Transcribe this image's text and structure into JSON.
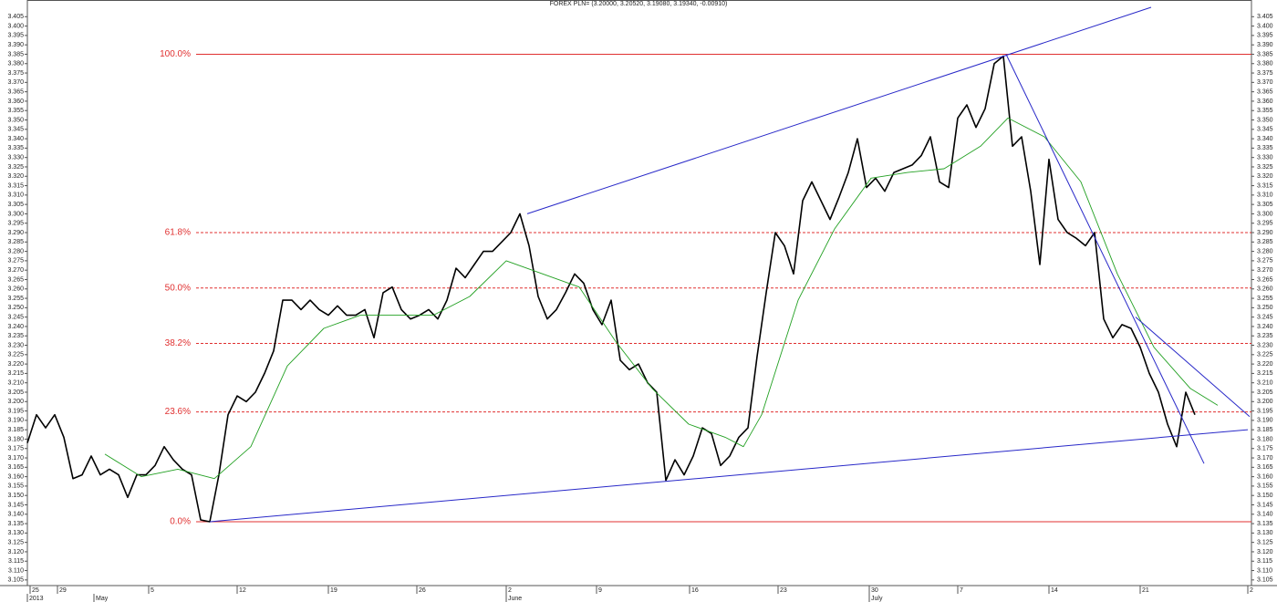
{
  "chart_data": {
    "type": "line",
    "title": "FOREX PLN= (3.20000, 3.20520, 3.19080, 3.19340, -0.00910)",
    "xlim": [
      0,
      134.2
    ],
    "ylim": [
      3.102,
      3.41
    ],
    "xticks": [
      {
        "value": 0.3,
        "label": "25"
      },
      {
        "value": 3.3,
        "label": "29"
      },
      {
        "value": 13.3,
        "label": "5"
      },
      {
        "value": 23,
        "label": "12"
      },
      {
        "value": 33,
        "label": "19"
      },
      {
        "value": 42.7,
        "label": "26"
      },
      {
        "value": 52.5,
        "label": "2"
      },
      {
        "value": 62.4,
        "label": "9"
      },
      {
        "value": 72.6,
        "label": "16"
      },
      {
        "value": 82.3,
        "label": "23"
      },
      {
        "value": 92.3,
        "label": "30"
      },
      {
        "value": 102,
        "label": "7"
      },
      {
        "value": 112,
        "label": "14"
      },
      {
        "value": 122,
        "label": "21"
      },
      {
        "value": 133.8,
        "label": "2"
      }
    ],
    "month_ticks": [
      {
        "value": 0,
        "label": "2013"
      },
      {
        "value": 7.3,
        "label": "May"
      },
      {
        "value": 52.5,
        "label": "June"
      },
      {
        "value": 92.3,
        "label": "July"
      }
    ],
    "yticks": [
      3.105,
      {
        "value": 3.11,
        "label": "3.110"
      },
      3.115,
      {
        "value": 3.12,
        "label": "3.120"
      },
      3.125,
      {
        "value": 3.13,
        "label": "3.130"
      },
      3.135,
      {
        "value": 3.14,
        "label": "3.140"
      },
      3.145,
      {
        "value": 3.15,
        "label": "3.150"
      },
      3.155,
      {
        "value": 3.16,
        "label": "3.160"
      },
      3.165,
      {
        "value": 3.17,
        "label": "3.170"
      },
      3.175,
      {
        "value": 3.18,
        "label": "3.180"
      },
      3.185,
      {
        "value": 3.19,
        "label": "3.190"
      },
      3.195,
      {
        "value": 3.2,
        "label": "3.200"
      },
      3.205,
      {
        "value": 3.21,
        "label": "3.210"
      },
      3.215,
      {
        "value": 3.22,
        "label": "3.220"
      },
      3.225,
      {
        "value": 3.23,
        "label": "3.230"
      },
      3.235,
      {
        "value": 3.24,
        "label": "3.240"
      },
      3.245,
      {
        "value": 3.25,
        "label": "3.250"
      },
      3.255,
      {
        "value": 3.26,
        "label": "3.260"
      },
      3.265,
      {
        "value": 3.27,
        "label": "3.270"
      },
      3.275,
      {
        "value": 3.28,
        "label": "3.280"
      },
      3.285,
      {
        "value": 3.29,
        "label": "3.290"
      },
      3.295,
      {
        "value": 3.3,
        "label": "3.300"
      },
      3.305,
      {
        "value": 3.31,
        "label": "3.310"
      },
      3.315,
      {
        "value": 3.32,
        "label": "3.320"
      },
      3.325,
      {
        "value": 3.33,
        "label": "3.330"
      },
      3.335,
      {
        "value": 3.34,
        "label": "3.340"
      },
      3.345,
      {
        "value": 3.35,
        "label": "3.350"
      },
      3.355,
      {
        "value": 3.36,
        "label": "3.360"
      },
      3.365,
      {
        "value": 3.37,
        "label": "3.370"
      },
      3.375,
      {
        "value": 3.38,
        "label": "3.380"
      },
      3.385,
      {
        "value": 3.39,
        "label": "3.390"
      },
      3.395,
      {
        "value": 3.4,
        "label": "3.400"
      },
      3.405
    ],
    "series": [
      {
        "color": "#000000",
        "width": 1.6,
        "x": [
          0,
          1,
          2,
          3,
          4,
          5,
          6,
          7,
          8,
          9,
          10,
          11,
          12,
          13,
          14,
          15,
          16,
          17,
          18,
          19,
          20,
          21,
          22,
          23,
          24,
          25,
          26,
          27,
          28,
          29,
          30,
          31,
          32,
          33,
          34,
          35,
          36,
          37,
          38,
          39,
          40,
          41,
          42,
          43,
          44,
          45,
          46,
          47,
          48,
          49,
          50,
          51,
          52,
          53,
          54,
          55,
          56,
          57,
          58,
          59,
          60,
          61,
          62,
          63,
          64,
          65,
          66,
          67,
          68,
          69,
          70,
          71,
          72,
          73,
          74,
          75,
          76,
          77,
          78,
          79,
          80,
          81,
          82,
          83,
          84,
          85,
          86,
          87,
          88,
          89,
          90,
          91,
          92,
          93,
          94,
          95,
          96,
          97,
          98,
          99,
          100,
          101,
          102,
          103,
          104,
          105,
          106,
          107,
          108,
          109,
          110,
          111,
          112,
          113,
          114,
          115,
          116,
          117,
          118,
          119,
          120,
          121,
          122,
          123,
          124,
          125,
          126,
          127,
          128
        ],
        "values": [
          3.178,
          3.193,
          3.186,
          3.193,
          3.181,
          3.159,
          3.161,
          3.171,
          3.161,
          3.164,
          3.161,
          3.149,
          3.161,
          3.161,
          3.166,
          3.176,
          3.169,
          3.164,
          3.161,
          3.137,
          3.136,
          3.161,
          3.193,
          3.203,
          3.2,
          3.205,
          3.215,
          3.227,
          3.254,
          3.254,
          3.249,
          3.254,
          3.249,
          3.246,
          3.251,
          3.246,
          3.246,
          3.249,
          3.234,
          3.258,
          3.261,
          3.249,
          3.244,
          3.246,
          3.249,
          3.244,
          3.254,
          3.271,
          3.266,
          3.273,
          3.28,
          3.28,
          3.285,
          3.29,
          3.3,
          3.283,
          3.256,
          3.244,
          3.249,
          3.258,
          3.268,
          3.263,
          3.249,
          3.241,
          3.254,
          3.222,
          3.217,
          3.22,
          3.21,
          3.205,
          3.158,
          3.169,
          3.161,
          3.171,
          3.186,
          3.183,
          3.166,
          3.171,
          3.181,
          3.186,
          3.224,
          3.258,
          3.29,
          3.283,
          3.268,
          3.307,
          3.317,
          3.307,
          3.297,
          3.309,
          3.322,
          3.34,
          3.314,
          3.319,
          3.312,
          3.322,
          3.324,
          3.326,
          3.331,
          3.341,
          3.317,
          3.314,
          3.351,
          3.358,
          3.346,
          3.356,
          3.38,
          3.384,
          3.336,
          3.341,
          3.312,
          3.273,
          3.329,
          3.297,
          3.29,
          3.287,
          3.283,
          3.29,
          3.244,
          3.234,
          3.241,
          3.239,
          3.229,
          3.215,
          3.205,
          3.188,
          3.176,
          3.205,
          3.193
        ]
      },
      {
        "color": "#22a022",
        "width": 0.9,
        "x": [
          8.5,
          12.5,
          16.5,
          20.5,
          24.5,
          28.5,
          32.5,
          36.5,
          40.5,
          44.5,
          48.5,
          52.5,
          56.5,
          60.5,
          64.5,
          68.5,
          72.5,
          76.5,
          78.5,
          80.5,
          84.5,
          88.5,
          92.5,
          96.5,
          100.5,
          104.5,
          107.5,
          111.5,
          115.5,
          119.5,
          123.5,
          127.5,
          130.5
        ],
        "values": [
          3.172,
          3.16,
          3.164,
          3.159,
          3.176,
          3.219,
          3.239,
          3.246,
          3.246,
          3.246,
          3.256,
          3.275,
          3.268,
          3.261,
          3.232,
          3.207,
          3.188,
          3.181,
          3.176,
          3.193,
          3.254,
          3.292,
          3.319,
          3.322,
          3.324,
          3.336,
          3.351,
          3.341,
          3.317,
          3.268,
          3.229,
          3.207,
          3.198
        ]
      }
    ],
    "trendlines": [
      {
        "color": "#2828c8",
        "x": [
          20,
          133.8
        ],
        "values": [
          3.136,
          3.185
        ]
      },
      {
        "color": "#2828c8",
        "x": [
          54.8,
          123.2
        ],
        "values": [
          3.3,
          3.41
        ]
      },
      {
        "color": "#2828c8",
        "x": [
          107.3,
          129
        ],
        "values": [
          3.385,
          3.167
        ]
      },
      {
        "color": "#2828c8",
        "x": [
          121.5,
          134
        ],
        "values": [
          3.245,
          3.192
        ]
      }
    ],
    "levels_color": "#e03030",
    "levels_start": 18.5,
    "levels": [
      {
        "label": "100.0%",
        "value": 3.385,
        "dashed": false
      },
      {
        "label": "61.8%",
        "value": 3.29,
        "dashed": true
      },
      {
        "label": "50.0%",
        "value": 3.2605,
        "dashed": true
      },
      {
        "label": "38.2%",
        "value": 3.231,
        "dashed": true
      },
      {
        "label": "23.6%",
        "value": 3.1945,
        "dashed": true
      },
      {
        "label": "0.0%",
        "value": 3.136,
        "dashed": false
      }
    ]
  }
}
